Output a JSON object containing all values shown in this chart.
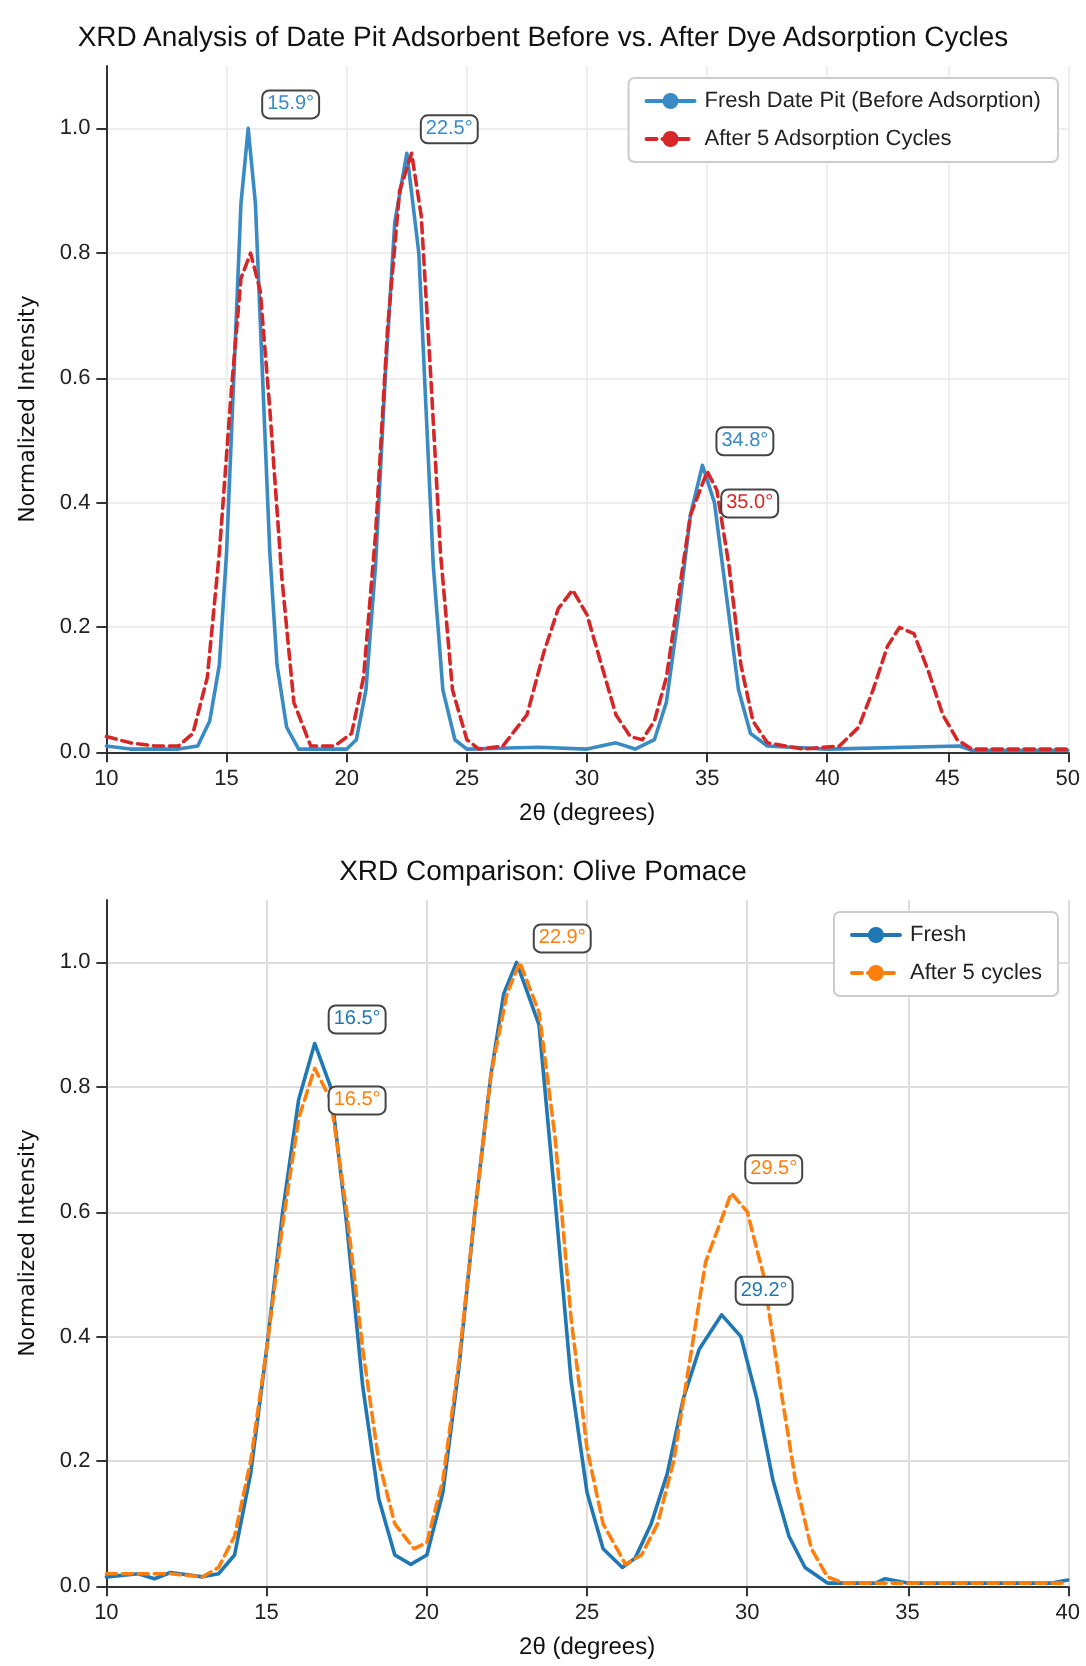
{
  "chart_data": [
    {
      "type": "line",
      "title": "XRD Analysis of Date Pit Adsorbent Before vs. After Dye Adsorption Cycles",
      "xlabel": "2θ (degrees)",
      "ylabel": "Normalized Intensity",
      "xlim": [
        10,
        50
      ],
      "xticks": [
        10,
        15,
        20,
        25,
        30,
        35,
        40,
        45,
        50
      ],
      "ylim": [
        0,
        1.1
      ],
      "yticks": [
        {
          "value": 0,
          "label": "0.0"
        },
        {
          "value": 0.2,
          "label": "0.2"
        },
        {
          "value": 0.4,
          "label": "0.4"
        },
        {
          "value": 0.6,
          "label": "0.6"
        },
        {
          "value": 0.8,
          "label": "0.8"
        },
        {
          "value": 1,
          "label": "1.0"
        }
      ],
      "grid": true,
      "legend": "top right",
      "series": [
        {
          "name": "Fresh Date Pit (Before Adsorption)",
          "color": "#3a8ac4",
          "line_style": "solid",
          "x": [
            10,
            11,
            12,
            13,
            13.8,
            14.3,
            14.7,
            15.0,
            15.3,
            15.6,
            15.9,
            16.2,
            16.5,
            16.8,
            17.1,
            17.5,
            18,
            20,
            20.4,
            20.8,
            21.2,
            21.6,
            22.0,
            22.5,
            23.0,
            23.3,
            23.6,
            24.0,
            24.5,
            25,
            28,
            30,
            31.2,
            32,
            32.8,
            33.3,
            33.8,
            34.3,
            34.8,
            35.3,
            35.8,
            36.3,
            36.8,
            37.5,
            40,
            45.5,
            46,
            50
          ],
          "values": [
            0.01,
            0.005,
            0.005,
            0.005,
            0.01,
            0.05,
            0.14,
            0.32,
            0.6,
            0.88,
            1.0,
            0.88,
            0.6,
            0.32,
            0.14,
            0.04,
            0.005,
            0.005,
            0.02,
            0.1,
            0.3,
            0.6,
            0.85,
            0.96,
            0.8,
            0.55,
            0.3,
            0.1,
            0.02,
            0.005,
            0.008,
            0.005,
            0.015,
            0.005,
            0.02,
            0.08,
            0.22,
            0.38,
            0.46,
            0.4,
            0.25,
            0.1,
            0.03,
            0.01,
            0.005,
            0.01,
            0.003,
            0.003
          ]
        },
        {
          "name": "After 5 Adsorption Cycles",
          "color": "#d62728",
          "line_style": "dashed",
          "x": [
            10,
            11,
            12,
            13,
            13.6,
            14.2,
            14.7,
            15.2,
            15.6,
            16.0,
            16.4,
            16.8,
            17.3,
            17.8,
            18.5,
            19.5,
            20.2,
            20.7,
            21.2,
            21.7,
            22.2,
            22.7,
            23.1,
            23.5,
            23.9,
            24.4,
            25,
            25.5,
            26.5,
            27.5,
            28.2,
            28.8,
            29.4,
            30,
            30.6,
            31.2,
            31.8,
            32.3,
            32.8,
            33.3,
            33.8,
            34.3,
            35.0,
            35.4,
            35.9,
            36.4,
            36.9,
            37.5,
            39,
            40.5,
            41.3,
            41.9,
            42.5,
            43.0,
            43.6,
            44.2,
            44.8,
            45.4,
            46,
            50
          ],
          "values": [
            0.025,
            0.015,
            0.01,
            0.01,
            0.03,
            0.12,
            0.32,
            0.58,
            0.76,
            0.8,
            0.74,
            0.55,
            0.28,
            0.08,
            0.01,
            0.01,
            0.03,
            0.12,
            0.35,
            0.68,
            0.9,
            0.96,
            0.86,
            0.6,
            0.32,
            0.1,
            0.02,
            0.005,
            0.01,
            0.06,
            0.16,
            0.23,
            0.26,
            0.22,
            0.14,
            0.06,
            0.025,
            0.02,
            0.05,
            0.12,
            0.25,
            0.38,
            0.45,
            0.42,
            0.3,
            0.14,
            0.05,
            0.015,
            0.005,
            0.01,
            0.04,
            0.1,
            0.17,
            0.2,
            0.19,
            0.13,
            0.06,
            0.02,
            0.005,
            0.005
          ]
        }
      ],
      "annotations": [
        {
          "text": "15.9°",
          "x": 15.9,
          "y": 1.0
        },
        {
          "text": "22.5°",
          "x": 22.5,
          "y": 0.96
        },
        {
          "text": "34.8°",
          "x": 34.8,
          "y": 0.46
        },
        {
          "text": "35.0°",
          "x": 35.0,
          "y": 0.45
        }
      ]
    },
    {
      "type": "line",
      "title": "XRD Comparison: Olive Pomace",
      "xlabel": "2θ (degrees)",
      "ylabel": "Normalized Intensity",
      "xlim": [
        10,
        40
      ],
      "xticks": [
        10,
        15,
        20,
        25,
        30,
        35,
        40
      ],
      "ylim": [
        0,
        1.1
      ],
      "yticks": [
        {
          "value": 0,
          "label": "0.0"
        },
        {
          "value": 0.2,
          "label": "0.2"
        },
        {
          "value": 0.4,
          "label": "0.4"
        },
        {
          "value": 0.6,
          "label": "0.6"
        },
        {
          "value": 0.8,
          "label": "0.8"
        },
        {
          "value": 1,
          "label": "1.0"
        }
      ],
      "grid": true,
      "legend": "top right",
      "series": [
        {
          "name": "Fresh",
          "color": "#1f77b4",
          "line_style": "solid",
          "x": [
            10,
            11,
            11.5,
            12,
            13,
            13.5,
            14,
            14.5,
            15,
            15.5,
            16,
            16.5,
            17,
            17.5,
            18,
            18.5,
            19,
            19.5,
            20,
            20.5,
            21,
            21.5,
            22,
            22.4,
            22.8,
            23.5,
            24,
            24.5,
            25,
            25.5,
            26.1,
            26.5,
            27,
            27.5,
            28,
            28.5,
            29.2,
            29.8,
            30.3,
            30.8,
            31.3,
            31.8,
            32.5,
            34,
            34.3,
            35,
            39.5,
            40
          ],
          "values": [
            0.015,
            0.02,
            0.012,
            0.022,
            0.015,
            0.02,
            0.05,
            0.18,
            0.38,
            0.6,
            0.78,
            0.87,
            0.8,
            0.58,
            0.32,
            0.14,
            0.05,
            0.035,
            0.05,
            0.15,
            0.35,
            0.6,
            0.82,
            0.95,
            1.0,
            0.9,
            0.62,
            0.33,
            0.15,
            0.06,
            0.03,
            0.045,
            0.1,
            0.18,
            0.3,
            0.38,
            0.435,
            0.4,
            0.3,
            0.17,
            0.08,
            0.03,
            0.005,
            0.005,
            0.012,
            0.005,
            0.005,
            0.01
          ]
        },
        {
          "name": "After 5 cycles",
          "color": "#ff7f0e",
          "line_style": "dashed",
          "x": [
            10,
            11,
            12,
            13,
            13.5,
            14,
            14.5,
            15,
            15.5,
            16,
            16.5,
            17,
            17.5,
            18,
            18.5,
            19,
            19.6,
            20,
            20.5,
            21,
            21.5,
            22,
            22.5,
            22.9,
            23.5,
            24,
            24.5,
            25,
            25.5,
            26.2,
            26.7,
            27.2,
            27.7,
            28.2,
            28.7,
            29.5,
            30,
            30.5,
            31,
            31.5,
            32,
            32.5,
            33,
            40
          ],
          "values": [
            0.02,
            0.02,
            0.02,
            0.015,
            0.03,
            0.08,
            0.2,
            0.38,
            0.58,
            0.75,
            0.83,
            0.78,
            0.6,
            0.38,
            0.2,
            0.1,
            0.06,
            0.07,
            0.17,
            0.36,
            0.6,
            0.82,
            0.95,
            1.0,
            0.92,
            0.72,
            0.43,
            0.22,
            0.1,
            0.035,
            0.05,
            0.1,
            0.2,
            0.36,
            0.52,
            0.63,
            0.6,
            0.5,
            0.33,
            0.17,
            0.06,
            0.015,
            0.005,
            0.005
          ]
        }
      ],
      "annotations": [
        {
          "text": "16.5°",
          "x": 16.5,
          "y": 0.87
        },
        {
          "text": "16.5°",
          "x": 16.5,
          "y": 0.83
        },
        {
          "text": "22.9°",
          "x": 22.9,
          "y": 1.0
        },
        {
          "text": "29.5°",
          "x": 29.5,
          "y": 0.63
        },
        {
          "text": "29.2°",
          "x": 29.2,
          "y": 0.435
        }
      ]
    }
  ]
}
